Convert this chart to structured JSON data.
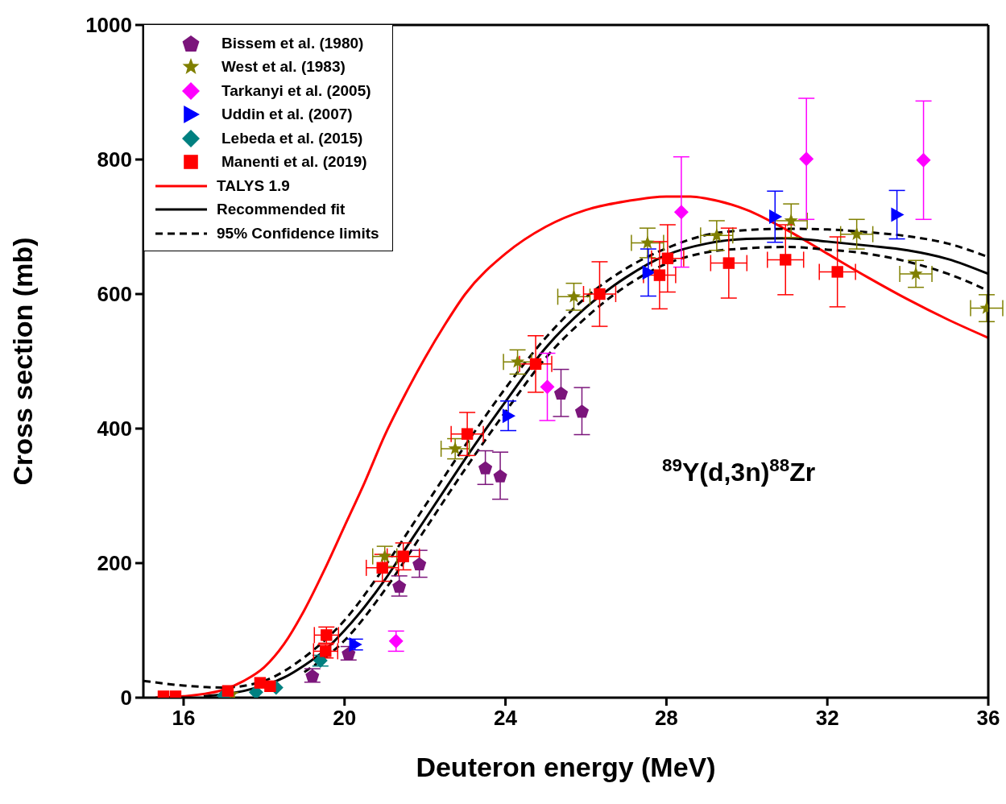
{
  "chart_data": {
    "type": "scatter",
    "xlabel": "Deuteron energy (MeV)",
    "ylabel": "Cross section (mb)",
    "xlim": [
      15,
      36
    ],
    "xticks": [
      16,
      20,
      24,
      28,
      32,
      36
    ],
    "ylim": [
      0,
      1000
    ],
    "yticks": [
      0,
      200,
      400,
      600,
      800,
      1000
    ],
    "grid": false,
    "legend": "top left",
    "annotations": [
      "$^{89}$Y(d,3n)$^{88}$Zr"
    ],
    "series": [
      {
        "name": "Bissem et al.  (1980)",
        "color": "#7b157b",
        "x": [
          19.2,
          20.1,
          21.36,
          21.86,
          23.5,
          23.87,
          25.38,
          25.9
        ],
        "values": [
          33,
          66,
          166,
          199,
          342,
          330,
          453,
          426
        ],
        "errors": [
          10,
          10,
          15,
          20,
          25,
          35,
          35,
          35
        ]
      },
      {
        "name": "West et al. (1983)",
        "color": "#808000",
        "marker": "star",
        "x": [
          17.2,
          21.0,
          22.75,
          24.3,
          25.7,
          27.53,
          29.25,
          31.1,
          32.73,
          34.2,
          35.96
        ],
        "values": [
          5,
          210,
          370,
          499,
          596,
          676,
          687,
          709,
          689,
          630,
          579
        ],
        "errors": [
          null,
          15,
          15,
          18,
          20,
          22,
          22,
          25,
          22,
          20,
          20
        ],
        "xerrors": [
          null,
          0.3,
          0.35,
          0.35,
          0.4,
          0.4,
          0.4,
          0.4,
          0.4,
          0.4,
          0.4
        ]
      },
      {
        "name": "Tarkanyi et al. (2005)",
        "color": "#ff00ff",
        "marker": "diamond",
        "x": [
          21.28,
          25.04,
          28.37,
          31.48,
          34.39
        ],
        "values": [
          84,
          462,
          722,
          801,
          799
        ],
        "errors": [
          15,
          50,
          82,
          90,
          88
        ]
      },
      {
        "name": "Uddin et al. (2007)",
        "color": "#0000ff",
        "marker": "triangle",
        "x": [
          20.26,
          24.07,
          27.55,
          30.7,
          33.73
        ],
        "values": [
          79,
          419,
          632,
          715,
          718
        ],
        "errors": [
          8,
          22,
          35,
          38,
          36
        ]
      },
      {
        "name": "Lebeda et al. (2015)",
        "color": "#008080",
        "marker": "diamond",
        "x": [
          17.0,
          17.8,
          18.3,
          19.4
        ],
        "values": [
          3,
          8,
          15,
          55
        ],
        "errors": [
          null,
          null,
          null,
          8
        ]
      },
      {
        "name": "Manenti et al.  (2019)",
        "color": "#ff0000",
        "marker": "square",
        "x": [
          15.5,
          15.8,
          17.1,
          17.9,
          18.15,
          19.53,
          19.55,
          20.94,
          21.46,
          23.05,
          24.75,
          26.34,
          27.83,
          28.03,
          29.55,
          30.96,
          32.25
        ],
        "values": [
          2,
          2,
          10,
          22,
          17,
          69,
          93,
          193,
          210,
          392,
          496,
          600,
          628,
          653,
          646,
          651,
          633
        ],
        "errors": [
          null,
          null,
          null,
          null,
          null,
          10,
          12,
          20,
          20,
          32,
          42,
          48,
          50,
          50,
          52,
          52,
          52
        ],
        "xerrors": [
          null,
          null,
          null,
          null,
          null,
          0.3,
          0.3,
          0.4,
          0.4,
          0.4,
          0.4,
          0.4,
          0.4,
          0.4,
          0.45,
          0.45,
          0.45
        ]
      },
      {
        "name": "TALYS 1.9",
        "type": "line",
        "color": "#ff0000",
        "line_style": "solid",
        "marker": "none",
        "x": [
          15.3,
          16,
          17,
          17.5,
          18,
          18.5,
          19,
          19.5,
          20,
          20.5,
          21,
          21.5,
          22,
          22.5,
          23,
          24,
          25,
          26,
          27,
          28,
          28.6,
          29,
          30,
          31,
          32,
          33,
          34,
          35,
          36
        ],
        "values": [
          0,
          2,
          12,
          25,
          45,
          80,
          130,
          190,
          255,
          320,
          390,
          450,
          505,
          555,
          600,
          660,
          700,
          725,
          738,
          745,
          745,
          742,
          725,
          695,
          660,
          625,
          592,
          562,
          535
        ]
      },
      {
        "name": "Recommended fit",
        "type": "line",
        "color": "#000000",
        "line_style": "solid",
        "marker": "none",
        "x": [
          16.5,
          17,
          17.5,
          18.5,
          19,
          19.5,
          20,
          20.5,
          21,
          21.5,
          22,
          22.5,
          23,
          24,
          25,
          26,
          27,
          28,
          29,
          30,
          31,
          32,
          33,
          34,
          35,
          36
        ],
        "values": [
          2,
          5,
          10,
          30,
          48,
          70,
          100,
          135,
          175,
          220,
          265,
          310,
          355,
          440,
          520,
          580,
          625,
          658,
          675,
          682,
          683,
          678,
          672,
          665,
          652,
          630
        ]
      },
      {
        "name": "95% Confidence limits",
        "type": "line",
        "color": "#000000",
        "line_style": "dashed",
        "marker": "none",
        "x": [
          15,
          16,
          17,
          18,
          19,
          20,
          21,
          22,
          23,
          24,
          25,
          26,
          27,
          28,
          29,
          30,
          31,
          32,
          33,
          34,
          35,
          36
        ],
        "values": [
          25,
          18,
          15,
          25,
          60,
          115,
          195,
          285,
          375,
          460,
          535,
          595,
          638,
          668,
          688,
          695,
          697,
          696,
          692,
          686,
          675,
          655
        ]
      },
      {
        "type": "line",
        "color": "#000000",
        "line_style": "dashed",
        "marker": "none",
        "x": [
          19,
          20,
          21,
          22,
          23,
          24,
          25,
          26,
          27,
          28,
          29,
          30,
          31,
          32,
          33,
          34,
          35,
          36
        ],
        "values": [
          38,
          85,
          160,
          250,
          340,
          425,
          505,
          565,
          612,
          645,
          662,
          668,
          670,
          666,
          660,
          648,
          630,
          605
        ]
      }
    ]
  }
}
